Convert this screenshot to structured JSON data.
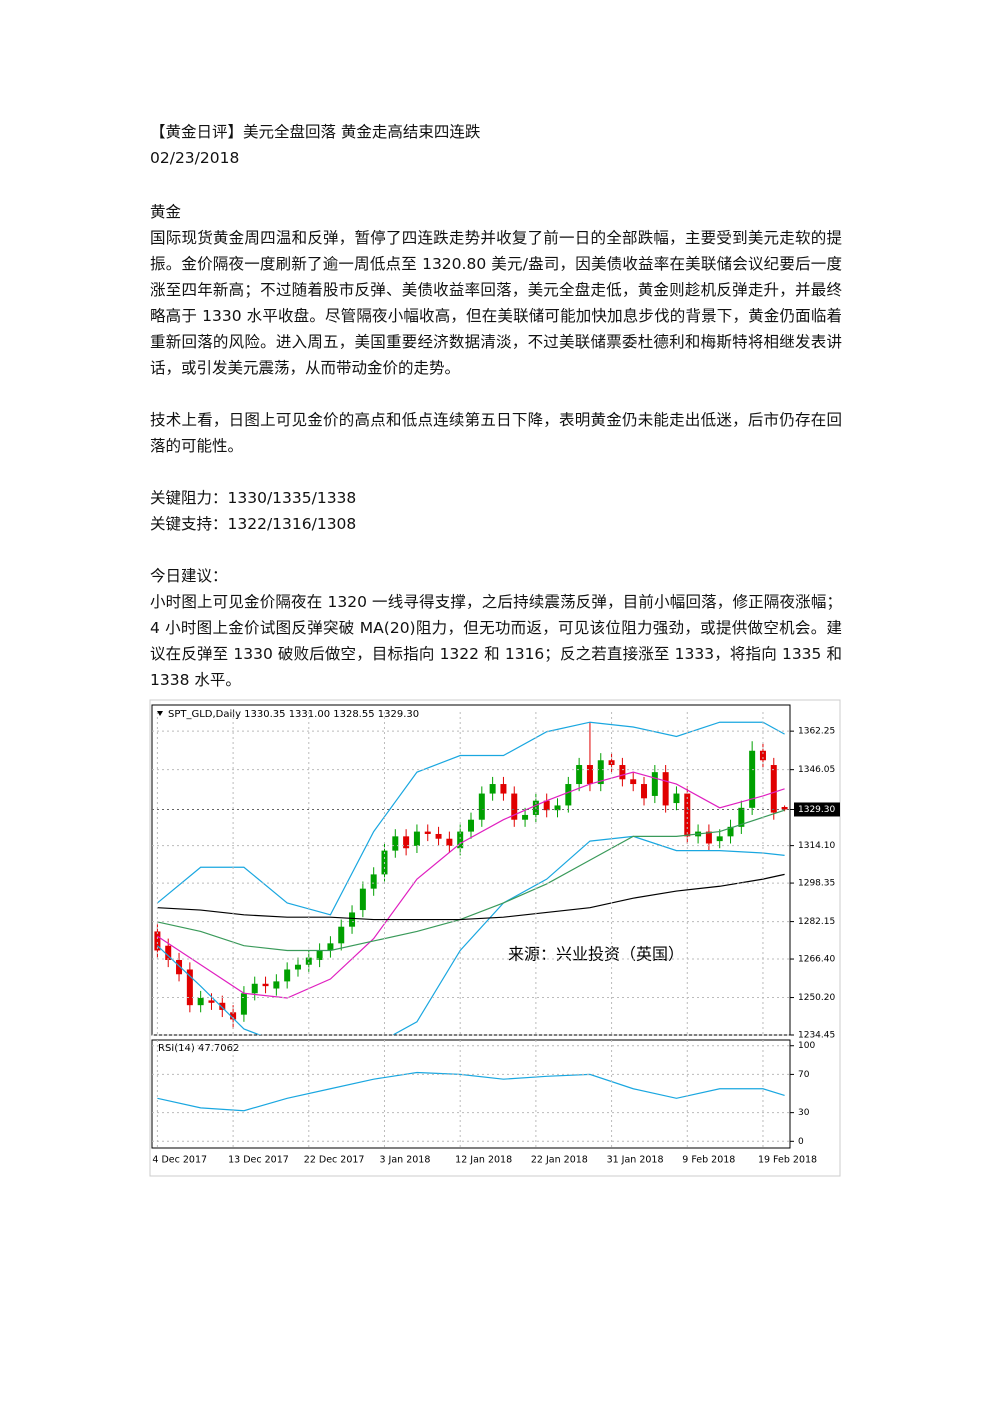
{
  "document": {
    "title": "【黄金日评】美元全盘回落 黄金走高结束四连跌",
    "date": "02/23/2018",
    "section_heading": "黄金",
    "paragraphs": [
      "国际现货黄金周四温和反弹，暂停了四连跌走势并收复了前一日的全部跌幅，主要受到美元走软的提振。金价隔夜一度刷新了逾一周低点至 1320.80 美元/盎司，因美债收益率在美联储会议纪要后一度涨至四年新高；不过随着股市反弹、美债收益率回落，美元全盘走低，黄金则趁机反弹走升，并最终略高于 1330 水平收盘。尽管隔夜小幅收高，但在美联储可能加快加息步伐的背景下，黄金仍面临着重新回落的风险。进入周五，美国重要经济数据清淡，不过美联储票委杜德利和梅斯特将相继发表讲话，或引发美元震荡，从而带动金价的走势。",
      "技术上看，日图上可见金价的高点和低点连续第五日下降，表明黄金仍未能走出低迷，后市仍存在回落的可能性。"
    ],
    "resistance": "关键阻力：1330/1335/1338",
    "support": "关键支持：1322/1316/1308",
    "advice_heading": "今日建议：",
    "advice": "小时图上可见金价隔夜在 1320 一线寻得支撑，之后持续震荡反弹，目前小幅回落，修正隔夜涨幅；4 小时图上金价试图反弹突破 MA(20)阻力，但无功而返，可见该位阻力强劲，或提供做空机会。建议在反弹至 1330 破败后做空，目标指向 1322 和 1316；反之若直接涨至 1333，将指向 1335 和 1338 水平。"
  },
  "chart_data": [
    {
      "type": "candlestick",
      "title": "SPT_GLD,Daily  1330.35 1331.00 1328.55 1329.30",
      "annotation": "来源：兴业投资（英国）",
      "categories": [
        "4 Dec 2017",
        null,
        null,
        null,
        null,
        null,
        null,
        "13 Dec 2017",
        null,
        null,
        null,
        null,
        null,
        null,
        "22 Dec 2017",
        null,
        null,
        null,
        null,
        null,
        null,
        "3 Jan 2018",
        null,
        null,
        null,
        null,
        null,
        null,
        "12 Jan 2018",
        null,
        null,
        null,
        null,
        null,
        null,
        "22 Jan 2018",
        null,
        null,
        null,
        null,
        null,
        null,
        "31 Jan 2018",
        null,
        null,
        null,
        null,
        null,
        null,
        "9 Feb 2018",
        null,
        null,
        null,
        null,
        null,
        null,
        "19 Feb 2018",
        null,
        null
      ],
      "open": [
        1278,
        1272,
        1266,
        1262,
        1247,
        1249,
        1248,
        1244,
        1243,
        1252,
        1256,
        1254,
        1257,
        1262,
        1264,
        1266,
        1270,
        1273,
        1280,
        1287,
        1296,
        1302,
        1312,
        1318,
        1314,
        1320,
        1319,
        1317,
        1313,
        1320,
        1325,
        1336,
        1340,
        1336,
        1325,
        1327,
        1333,
        1329,
        1331,
        1340,
        1348,
        1340,
        1350,
        1348,
        1342,
        1340,
        1335,
        1345,
        1332,
        1336,
        1318,
        1320,
        1316,
        1318,
        1322,
        1330,
        1354,
        1348,
        1330.35
      ],
      "high": [
        1281,
        1275,
        1269,
        1265,
        1253,
        1252,
        1251,
        1247,
        1255,
        1259,
        1259,
        1260,
        1265,
        1267,
        1270,
        1273,
        1276,
        1283,
        1289,
        1299,
        1305,
        1315,
        1321,
        1321,
        1323,
        1323,
        1322,
        1320,
        1323,
        1328,
        1339,
        1343,
        1343,
        1339,
        1330,
        1336,
        1336,
        1334,
        1343,
        1351,
        1366,
        1353,
        1353,
        1351,
        1345,
        1343,
        1348,
        1348,
        1339,
        1339,
        1323,
        1323,
        1321,
        1325,
        1333,
        1358,
        1357,
        1351,
        1331
      ],
      "low": [
        1267,
        1263,
        1257,
        1244,
        1244,
        1245,
        1242,
        1237,
        1240,
        1249,
        1252,
        1251,
        1254,
        1259,
        1261,
        1263,
        1267,
        1270,
        1277,
        1284,
        1293,
        1299,
        1309,
        1310,
        1311,
        1316,
        1314,
        1311,
        1310,
        1317,
        1322,
        1333,
        1333,
        1322,
        1322,
        1324,
        1326,
        1326,
        1328,
        1337,
        1337,
        1337,
        1345,
        1339,
        1337,
        1331,
        1332,
        1328,
        1329,
        1315,
        1315,
        1312,
        1313,
        1315,
        1319,
        1327,
        1347,
        1325,
        1328.55
      ],
      "close": [
        1270,
        1266,
        1260,
        1247,
        1250,
        1248,
        1245,
        1241,
        1252,
        1256,
        1255,
        1257,
        1262,
        1264,
        1267,
        1270,
        1273,
        1280,
        1286,
        1296,
        1302,
        1312,
        1318,
        1313,
        1320,
        1319,
        1317,
        1314,
        1320,
        1325,
        1336,
        1340,
        1336,
        1325,
        1327,
        1333,
        1329,
        1331,
        1340,
        1348,
        1340,
        1350,
        1348,
        1342,
        1340,
        1334,
        1345,
        1331,
        1336,
        1318,
        1320,
        1315,
        1318,
        1322,
        1330,
        1354,
        1350,
        1328,
        1329.3
      ],
      "up_color": "#00a000",
      "down_color": "#e00000",
      "overlays": [
        {
          "color": "#1aa7e0",
          "x": [
            0,
            4,
            8,
            12,
            16,
            20,
            24,
            28,
            32,
            36,
            40,
            44,
            48,
            52,
            56,
            58
          ],
          "values": [
            1290,
            1305,
            1305,
            1290,
            1285,
            1320,
            1345,
            1352,
            1352,
            1362,
            1366,
            1364,
            1360,
            1366,
            1366,
            1361
          ]
        },
        {
          "color": "#1aa7e0",
          "x": [
            0,
            4,
            8,
            12,
            16,
            20,
            24,
            28,
            32,
            36,
            40,
            44,
            48,
            52,
            56,
            58
          ],
          "values": [
            1272,
            1255,
            1237,
            1230,
            1234,
            1230,
            1240,
            1270,
            1290,
            1300,
            1316,
            1318,
            1312,
            1312,
            1311,
            1310
          ]
        },
        {
          "color": "#e020c0",
          "x": [
            0,
            4,
            8,
            12,
            16,
            20,
            24,
            28,
            32,
            36,
            40,
            44,
            48,
            52,
            56,
            58
          ],
          "values": [
            1276,
            1264,
            1252,
            1250,
            1258,
            1275,
            1300,
            1315,
            1325,
            1333,
            1340,
            1345,
            1340,
            1330,
            1335,
            1338
          ]
        },
        {
          "color": "#3a9a5a",
          "x": [
            0,
            4,
            8,
            12,
            16,
            20,
            24,
            28,
            32,
            36,
            40,
            44,
            48,
            52,
            56,
            58
          ],
          "values": [
            1282,
            1278,
            1272,
            1270,
            1270,
            1274,
            1278,
            1283,
            1290,
            1298,
            1308,
            1318,
            1318,
            1320,
            1326,
            1329
          ]
        },
        {
          "color": "#000000",
          "x": [
            0,
            4,
            8,
            12,
            16,
            20,
            24,
            28,
            32,
            36,
            40,
            44,
            48,
            52,
            56,
            58
          ],
          "values": [
            1288,
            1287,
            1285,
            1284,
            1284,
            1283,
            1283,
            1283,
            1284,
            1286,
            1288,
            1292,
            1295,
            1297,
            1300,
            1302
          ]
        }
      ],
      "ylim": [
        1234.45,
        1370.3
      ],
      "yticks": [
        1362.25,
        1346.05,
        {
          "value": 1329.3,
          "label": "1329.30"
        },
        {
          "value": 1314.1,
          "label": "1314.10"
        },
        1298.35,
        1282.15,
        {
          "value": 1266.4,
          "label": "1266.40"
        },
        {
          "value": 1250.2,
          "label": "1250.20"
        },
        1234.45
      ],
      "current_price_tick": 2,
      "grid": true
    },
    {
      "type": "line",
      "title": "RSI(14) 47.7062",
      "series": [
        {
          "color": "#1aa7e0",
          "x": [
            0,
            4,
            8,
            12,
            16,
            20,
            24,
            28,
            32,
            36,
            40,
            44,
            48,
            52,
            56,
            58
          ],
          "values": [
            45,
            35,
            32,
            45,
            55,
            65,
            72,
            70,
            65,
            68,
            70,
            55,
            45,
            55,
            55,
            48
          ]
        }
      ],
      "ylim": [
        -7,
        106
      ],
      "yticks": [
        0,
        30,
        70,
        100
      ],
      "grid": true
    }
  ]
}
